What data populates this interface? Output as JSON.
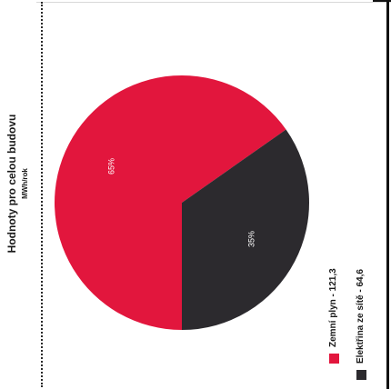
{
  "chart_data": {
    "type": "pie",
    "title": "Hodnoty pro celou budovu",
    "subtitle": "MWh/rok",
    "slices": [
      {
        "label": "Zemní plyn - 121,3",
        "value": 121.3,
        "percent_label": "65%",
        "color": "#e2163d"
      },
      {
        "label": "Elektřina ze sítě - 64,6",
        "value": 64.6,
        "percent_label": "35%",
        "color": "#2c2a2e"
      }
    ],
    "legend_placement": "right"
  }
}
